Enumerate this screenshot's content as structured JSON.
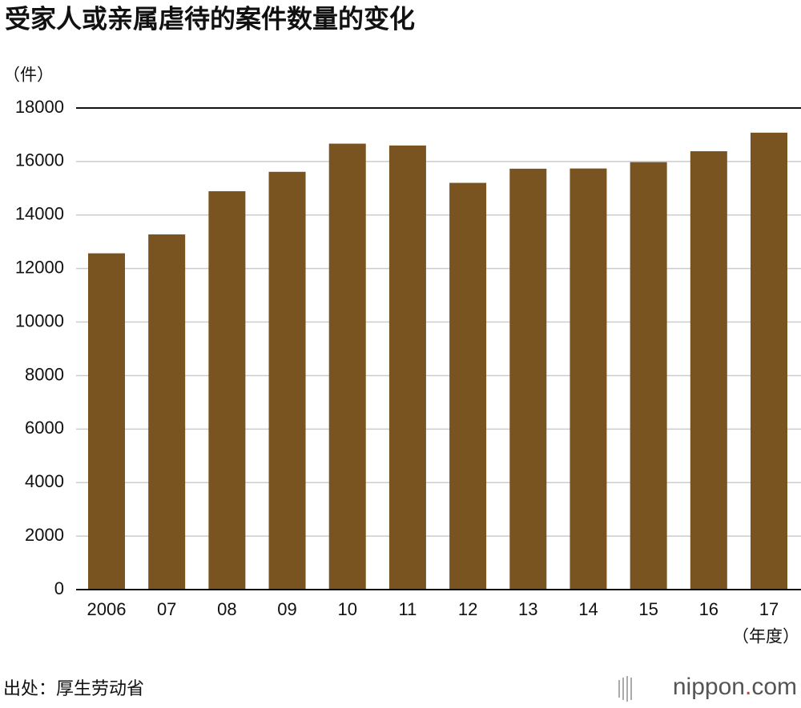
{
  "chart_data": {
    "type": "bar",
    "title": "受家人或亲属虐待的案件数量的变化",
    "y_unit": "（件）",
    "x_unit": "（年度）",
    "source": "出处：厚生劳动省",
    "brand": [
      "nippon",
      ".",
      "com"
    ],
    "categories": [
      "2006",
      "07",
      "08",
      "09",
      "10",
      "11",
      "12",
      "13",
      "14",
      "15",
      "16",
      "17"
    ],
    "values": [
      12569,
      13275,
      14889,
      15615,
      16668,
      16599,
      15202,
      15731,
      15739,
      15976,
      16384,
      17078
    ],
    "color": "#7a5420",
    "ylim": [
      0,
      18000
    ],
    "yticks": [
      0,
      2000,
      4000,
      6000,
      8000,
      10000,
      12000,
      14000,
      16000,
      18000
    ],
    "grid": true
  }
}
